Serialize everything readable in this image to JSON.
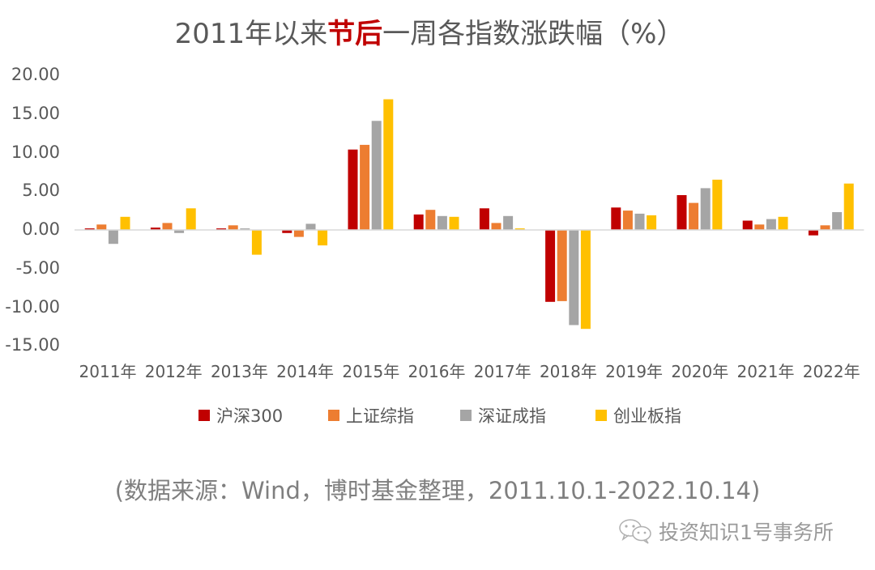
{
  "title": {
    "prefix": "2011年以来",
    "highlight": "节后",
    "suffix": "一周各指数涨跌幅（%）",
    "highlight_color": "#c00000"
  },
  "y_axis": {
    "ticks": [
      "20.00",
      "15.00",
      "10.00",
      "5.00",
      "0.00",
      "-5.00",
      "-10.00",
      "-15.00"
    ]
  },
  "x_axis": {
    "ticks": [
      "2011年",
      "2012年",
      "2013年",
      "2014年",
      "2015年",
      "2016年",
      "2017年",
      "2018年",
      "2019年",
      "2020年",
      "2021年",
      "2022年"
    ]
  },
  "legend": [
    {
      "label": "沪深300",
      "color": "#c00000"
    },
    {
      "label": "上证综指",
      "color": "#ed7d31"
    },
    {
      "label": "深证成指",
      "color": "#a5a5a5"
    },
    {
      "label": "创业板指",
      "color": "#ffc000"
    }
  ],
  "source_note": "(数据来源：Wind，博时基金整理，2011.10.1-2022.10.14)",
  "watermark": {
    "icon": "wechat-icon",
    "text": "投资知识1号事务所"
  },
  "chart_data": {
    "type": "bar",
    "title": "2011年以来节后一周各指数涨跌幅（%）",
    "xlabel": "",
    "ylabel": "",
    "ylim": [
      -15,
      20
    ],
    "ytick_step": 5,
    "grid": false,
    "legend_position": "bottom",
    "categories": [
      "2011年",
      "2012年",
      "2013年",
      "2014年",
      "2015年",
      "2016年",
      "2017年",
      "2018年",
      "2019年",
      "2020年",
      "2021年",
      "2022年"
    ],
    "series": [
      {
        "name": "沪深300",
        "color": "#c00000",
        "values": [
          0.2,
          0.3,
          0.2,
          -0.4,
          10.4,
          2.0,
          2.8,
          -9.3,
          2.9,
          4.5,
          1.2,
          -0.7
        ]
      },
      {
        "name": "上证综指",
        "color": "#ed7d31",
        "values": [
          0.7,
          0.9,
          0.6,
          -0.9,
          11.0,
          2.6,
          0.9,
          -9.2,
          2.5,
          3.5,
          0.7,
          0.6
        ]
      },
      {
        "name": "深证成指",
        "color": "#a5a5a5",
        "values": [
          -1.8,
          -0.4,
          0.2,
          0.8,
          14.1,
          1.8,
          1.8,
          -12.3,
          2.1,
          5.4,
          1.4,
          2.3
        ]
      },
      {
        "name": "创业板指",
        "color": "#ffc000",
        "values": [
          1.7,
          2.8,
          -3.2,
          -2.0,
          16.9,
          1.7,
          0.2,
          -12.8,
          1.9,
          6.5,
          1.7,
          6.0
        ]
      }
    ]
  }
}
